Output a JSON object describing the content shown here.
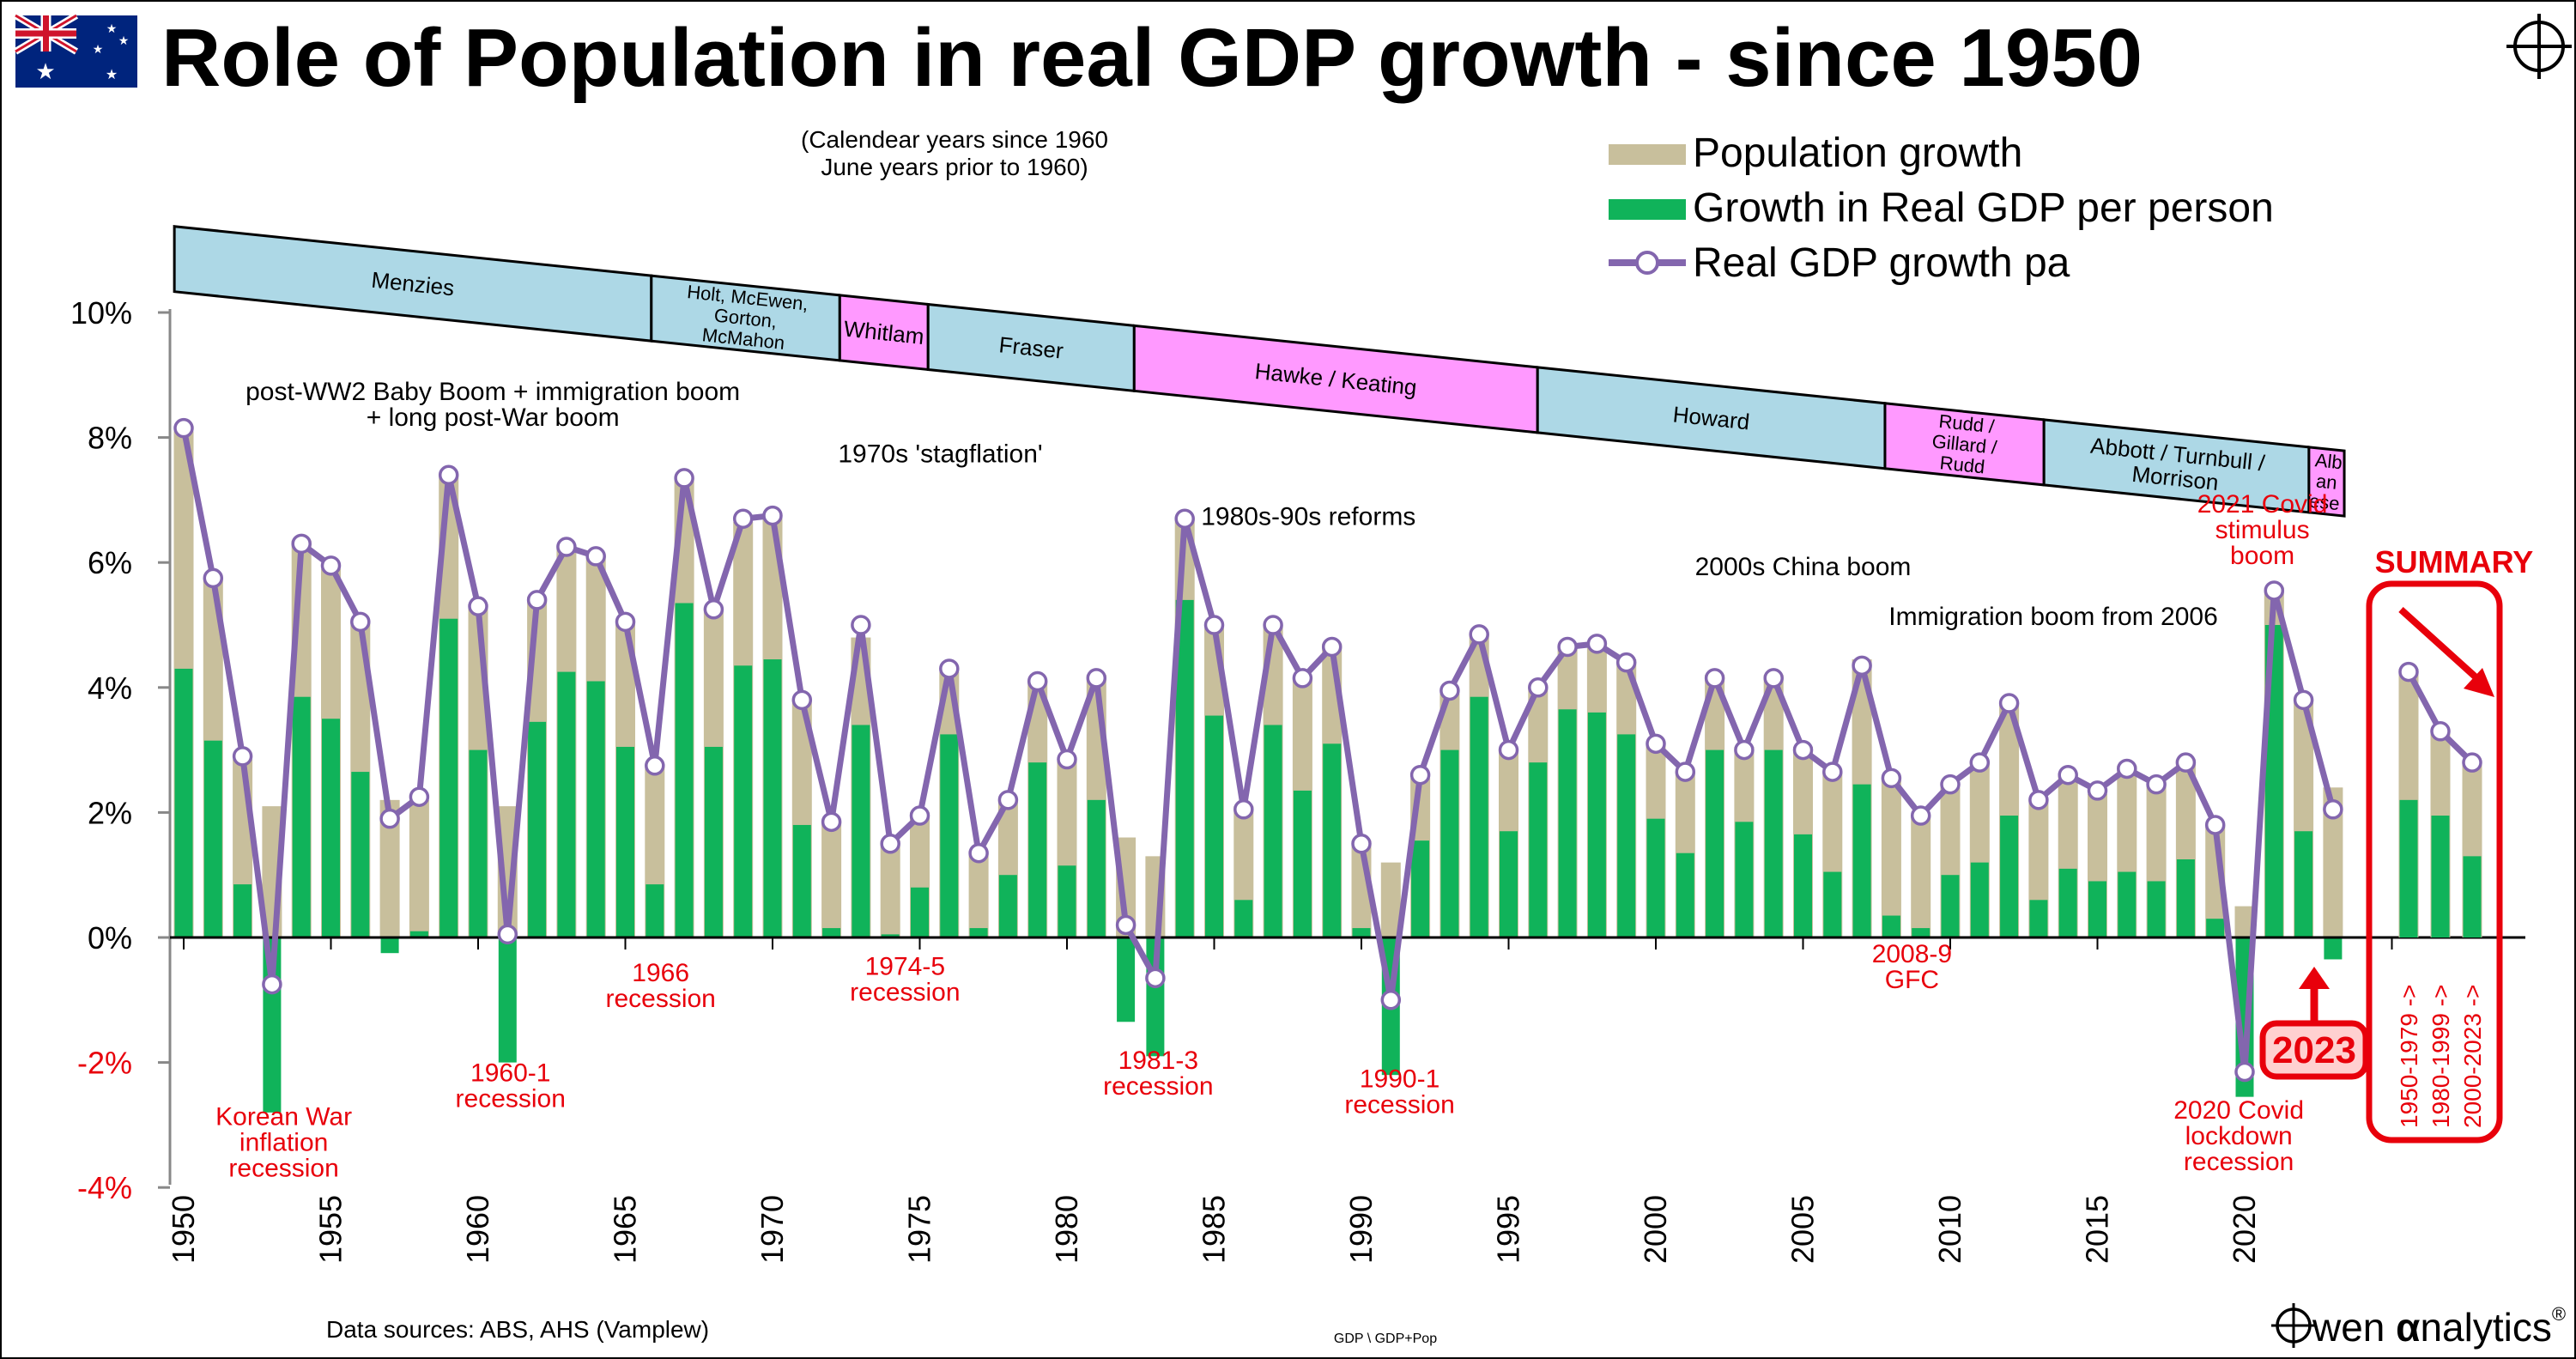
{
  "chart_data": {
    "type": "bar",
    "title": "Role of Population in real GDP growth - since 1950",
    "subtitle_lines": [
      "(Calendear years since 1960",
      "June years prior to 1960)"
    ],
    "ylim": [
      -4,
      10
    ],
    "yticks": [
      -4,
      -2,
      0,
      2,
      4,
      6,
      8,
      10
    ],
    "ytick_labels": [
      "-4%",
      "-2%",
      "0%",
      "2%",
      "4%",
      "6%",
      "8%",
      "10%"
    ],
    "x_tick_labels": [
      1950,
      1955,
      1960,
      1965,
      1970,
      1975,
      1980,
      1985,
      1990,
      1995,
      2000,
      2005,
      2010,
      2015,
      2020
    ],
    "legend": {
      "placement": "top-right",
      "items": [
        {
          "key": "population",
          "label": "Population growth",
          "color": "#c8bf9c"
        },
        {
          "key": "gdp_per_person",
          "label": "Growth in Real GDP per person",
          "color": "#10b35a"
        },
        {
          "key": "real_gdp",
          "label": "Real GDP growth pa",
          "color": "#8366ae"
        }
      ]
    },
    "years": [
      1950,
      1951,
      1952,
      1953,
      1954,
      1955,
      1956,
      1957,
      1958,
      1959,
      1960,
      1961,
      1962,
      1963,
      1964,
      1965,
      1966,
      1967,
      1968,
      1969,
      1970,
      1971,
      1972,
      1973,
      1974,
      1975,
      1976,
      1977,
      1978,
      1979,
      1980,
      1981,
      1982,
      1983,
      1984,
      1985,
      1986,
      1987,
      1988,
      1989,
      1990,
      1991,
      1992,
      1993,
      1994,
      1995,
      1996,
      1997,
      1998,
      1999,
      2000,
      2001,
      2002,
      2003,
      2004,
      2005,
      2006,
      2007,
      2008,
      2009,
      2010,
      2011,
      2012,
      2013,
      2014,
      2015,
      2016,
      2017,
      2018,
      2019,
      2020,
      2021,
      2022,
      2023
    ],
    "series": [
      {
        "name": "Population growth",
        "key": "population",
        "values": [
          3.8,
          2.6,
          2.0,
          2.1,
          2.5,
          2.4,
          2.4,
          2.2,
          2.1,
          2.3,
          2.3,
          2.1,
          2.0,
          2.0,
          2.0,
          2.0,
          1.9,
          2.0,
          2.2,
          2.3,
          2.3,
          2.0,
          1.7,
          1.4,
          1.5,
          1.2,
          1.0,
          1.2,
          1.2,
          1.3,
          1.7,
          2.0,
          1.6,
          1.3,
          1.3,
          1.4,
          1.5,
          1.6,
          1.8,
          1.6,
          1.4,
          1.2,
          1.0,
          0.9,
          1.0,
          1.3,
          1.2,
          1.0,
          1.1,
          1.2,
          1.2,
          1.3,
          1.2,
          1.2,
          1.2,
          1.4,
          1.6,
          2.0,
          2.2,
          1.8,
          1.4,
          1.6,
          1.8,
          1.6,
          1.5,
          1.4,
          1.7,
          1.6,
          1.6,
          1.5,
          0.5,
          0.6,
          2.1,
          2.4
        ]
      },
      {
        "name": "Growth in Real GDP per person",
        "key": "gdp_per_person",
        "values": [
          4.3,
          3.15,
          0.85,
          -2.8,
          3.85,
          3.5,
          2.65,
          -0.25,
          0.1,
          5.1,
          3.0,
          -2.0,
          3.45,
          4.25,
          4.1,
          3.05,
          0.85,
          5.35,
          3.05,
          4.35,
          4.45,
          1.8,
          0.15,
          3.4,
          0.05,
          0.8,
          3.25,
          0.15,
          1.0,
          2.8,
          1.15,
          2.2,
          -1.35,
          -1.9,
          5.4,
          3.55,
          0.6,
          3.4,
          2.35,
          3.1,
          0.15,
          -2.2,
          1.55,
          3.0,
          3.85,
          1.7,
          2.8,
          3.65,
          3.6,
          3.25,
          1.9,
          1.35,
          3.0,
          1.85,
          3.0,
          1.65,
          1.05,
          2.45,
          0.35,
          0.15,
          1.0,
          1.2,
          1.95,
          0.6,
          1.1,
          0.9,
          1.05,
          0.9,
          1.25,
          0.3,
          -2.55,
          5.0,
          1.7,
          -0.35
        ]
      },
      {
        "name": "Real GDP growth pa",
        "key": "real_gdp",
        "values": [
          8.15,
          5.75,
          2.9,
          -0.75,
          6.3,
          5.95,
          5.05,
          1.9,
          2.25,
          7.4,
          5.3,
          0.05,
          5.4,
          6.25,
          6.1,
          5.05,
          2.75,
          7.35,
          5.25,
          6.7,
          6.75,
          3.8,
          1.85,
          5.0,
          1.5,
          1.95,
          4.3,
          1.35,
          2.2,
          4.1,
          2.85,
          4.15,
          0.2,
          -0.65,
          6.7,
          5.0,
          2.05,
          5.0,
          4.15,
          4.65,
          1.5,
          -1.0,
          2.6,
          3.95,
          4.85,
          3.0,
          4.0,
          4.65,
          4.7,
          4.4,
          3.1,
          2.65,
          4.15,
          3.0,
          4.15,
          3.0,
          2.65,
          4.35,
          2.55,
          1.95,
          2.45,
          2.8,
          3.75,
          2.2,
          2.6,
          2.35,
          2.7,
          2.45,
          2.8,
          1.8,
          -2.15,
          5.55,
          3.8,
          2.05
        ]
      }
    ],
    "summary": {
      "title": "SUMMARY",
      "bars": [
        {
          "label": "1950-1979 ->",
          "population": 2.1,
          "gdp_per_person": 2.2,
          "real_gdp": 4.25
        },
        {
          "label": "1980-1999 ->",
          "population": 1.35,
          "gdp_per_person": 1.95,
          "real_gdp": 3.3
        },
        {
          "label": "2000-2023 ->",
          "population": 1.5,
          "gdp_per_person": 1.3,
          "real_gdp": 2.8
        }
      ]
    },
    "governments": [
      {
        "name": "Menzies",
        "lines": [
          "Menzies"
        ],
        "from": 1949.8,
        "to": 1966.0,
        "color": "#add8e6"
      },
      {
        "name": "Holt, McEwen, Gorton, McMahon",
        "lines": [
          "Holt, McEwen,",
          "Gorton,",
          "McMahon"
        ],
        "from": 1966.0,
        "to": 1972.4,
        "color": "#add8e6"
      },
      {
        "name": "Whitlam",
        "lines": [
          "Whitlam"
        ],
        "from": 1972.4,
        "to": 1975.4,
        "color": "#ff99ff"
      },
      {
        "name": "Fraser",
        "lines": [
          "Fraser"
        ],
        "from": 1975.4,
        "to": 1982.4,
        "color": "#add8e6"
      },
      {
        "name": "Hawke / Keating",
        "lines": [
          "Hawke / Keating"
        ],
        "from": 1982.4,
        "to": 1996.1,
        "color": "#ff99ff"
      },
      {
        "name": "Howard",
        "lines": [
          "Howard"
        ],
        "from": 1996.1,
        "to": 2007.9,
        "color": "#add8e6"
      },
      {
        "name": "Rudd / Gillard / Rudd",
        "lines": [
          "Rudd /",
          "Gillard /",
          "Rudd"
        ],
        "from": 2007.9,
        "to": 2013.3,
        "color": "#ff99ff"
      },
      {
        "name": "Abbott / Turnbull / Morrison",
        "lines": [
          "Abbott / Turnbull /",
          "Morrison"
        ],
        "from": 2013.3,
        "to": 2022.3,
        "color": "#add8e6"
      },
      {
        "name": "Albanese",
        "lines": [
          "Alb",
          "an",
          "ese"
        ],
        "from": 2022.3,
        "to": 2023.5,
        "color": "#ff99ff"
      }
    ],
    "annotations": [
      {
        "lines": [
          "post-WW2 Baby Boom + immigration boom",
          "+ long post-War boom"
        ],
        "x": 1960.5,
        "y": 8.6,
        "color": "#000000"
      },
      {
        "lines": [
          "1970s 'stagflation'"
        ],
        "x": 1975.7,
        "y": 7.6,
        "color": "#000000"
      },
      {
        "lines": [
          "1980s-90s reforms"
        ],
        "x": 1988.2,
        "y": 6.6,
        "color": "#000000"
      },
      {
        "lines": [
          "2000s China boom"
        ],
        "x": 2005.0,
        "y": 5.8,
        "color": "#000000"
      },
      {
        "lines": [
          "Immigration boom from 2006"
        ],
        "x": 2013.5,
        "y": 5.0,
        "color": "#000000"
      },
      {
        "lines": [
          "2021 Covid",
          "stimulus",
          "boom"
        ],
        "x": 2020.6,
        "y": 6.8,
        "color": "#e8000b"
      },
      {
        "lines": [
          "Korean War",
          "inflation",
          "recession"
        ],
        "x": 1953.4,
        "y": -3.0,
        "color": "#e8000b"
      },
      {
        "lines": [
          "1960-1",
          "recession"
        ],
        "x": 1961.1,
        "y": -2.3,
        "color": "#e8000b"
      },
      {
        "lines": [
          "1966",
          "recession"
        ],
        "x": 1966.2,
        "y": -0.7,
        "color": "#e8000b"
      },
      {
        "lines": [
          "1974-5",
          "recession"
        ],
        "x": 1974.5,
        "y": -0.6,
        "color": "#e8000b"
      },
      {
        "lines": [
          "1981-3",
          "recession"
        ],
        "x": 1983.1,
        "y": -2.1,
        "color": "#e8000b"
      },
      {
        "lines": [
          "1990-1",
          "recession"
        ],
        "x": 1991.3,
        "y": -2.4,
        "color": "#e8000b"
      },
      {
        "lines": [
          "2008-9",
          "GFC"
        ],
        "x": 2008.7,
        "y": -0.4,
        "color": "#e8000b"
      },
      {
        "lines": [
          "2020 Covid",
          "lockdown",
          "recession"
        ],
        "x": 2019.8,
        "y": -2.9,
        "color": "#e8000b"
      }
    ],
    "highlight_label": "2023",
    "grid": false
  },
  "footer": {
    "sources": "Data sources: ABS, AHS (Vamplew)",
    "code": "GDP \\ GDP+Pop",
    "brand_pre": "wen ",
    "brand_alpha": "α",
    "brand_post": "nalytics",
    "brand_reg": "®"
  },
  "colors": {
    "population": "#c8bf9c",
    "gdp_per_person": "#10b35a",
    "line": "#8366ae",
    "red": "#e8000b",
    "text": "#000000"
  },
  "icons": {
    "flag": "australian-flag-icon",
    "crosshair": "crosshair-icon"
  }
}
